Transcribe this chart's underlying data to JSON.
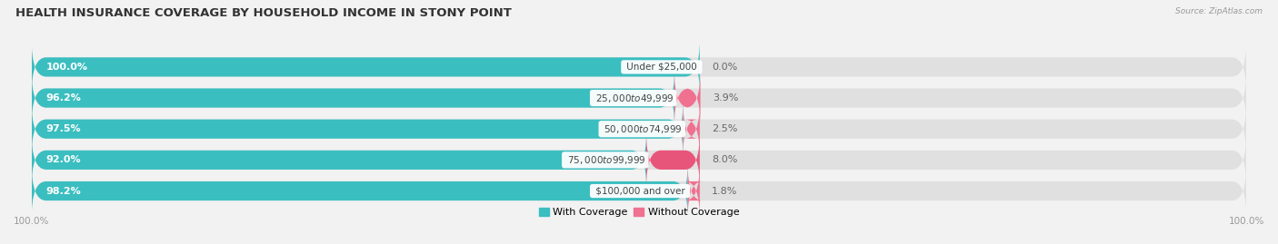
{
  "title": "HEALTH INSURANCE COVERAGE BY HOUSEHOLD INCOME IN STONY POINT",
  "source": "Source: ZipAtlas.com",
  "categories": [
    "Under $25,000",
    "$25,000 to $49,999",
    "$50,000 to $74,999",
    "$75,000 to $99,999",
    "$100,000 and over"
  ],
  "with_coverage": [
    100.0,
    96.2,
    97.5,
    92.0,
    98.2
  ],
  "without_coverage": [
    0.0,
    3.9,
    2.5,
    8.0,
    1.8
  ],
  "color_with": "#3bbec0",
  "color_without": "#f07090",
  "color_without_dark": "#e8557a",
  "bg_color": "#f2f2f2",
  "bar_bg_color": "#e0e0e0",
  "title_fontsize": 9.5,
  "label_fontsize": 8.0,
  "cat_fontsize": 7.5,
  "tick_fontsize": 7.5,
  "bar_height": 0.62,
  "bar_gap": 0.38,
  "xlim": [
    0,
    100
  ],
  "legend_labels": [
    "With Coverage",
    "Without Coverage"
  ],
  "bar_scale": 0.55
}
